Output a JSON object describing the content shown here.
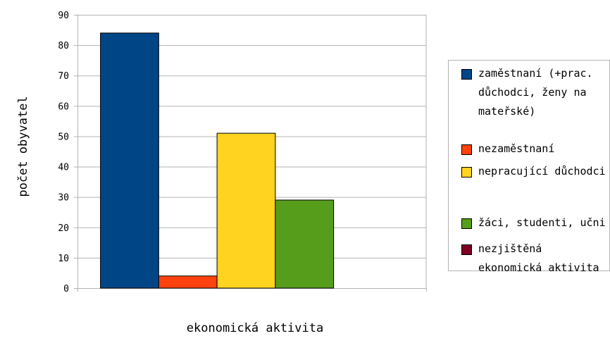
{
  "chart_data": {
    "type": "bar",
    "xlabel": "ekonomická aktivita",
    "ylabel": "počet obyvatel",
    "ylim": [
      0,
      90
    ],
    "yticks": [
      0,
      10,
      20,
      30,
      40,
      50,
      60,
      70,
      80,
      90
    ],
    "grid": true,
    "legend_position": "right",
    "series": [
      {
        "name": "zaměstnaní (+prac. důchodci, ženy na mateřské)",
        "value": 84,
        "color": "#004586"
      },
      {
        "name": "nezaměstnaní",
        "value": 4,
        "color": "#ff420e"
      },
      {
        "name": "nepracující důchodci",
        "value": 51,
        "color": "#ffd320"
      },
      {
        "name": "žáci, studenti, učni",
        "value": 29,
        "color": "#579d1c"
      },
      {
        "name": "nezjištěná ekonomická aktivita",
        "value": 0,
        "color": "#7e0021"
      }
    ]
  }
}
